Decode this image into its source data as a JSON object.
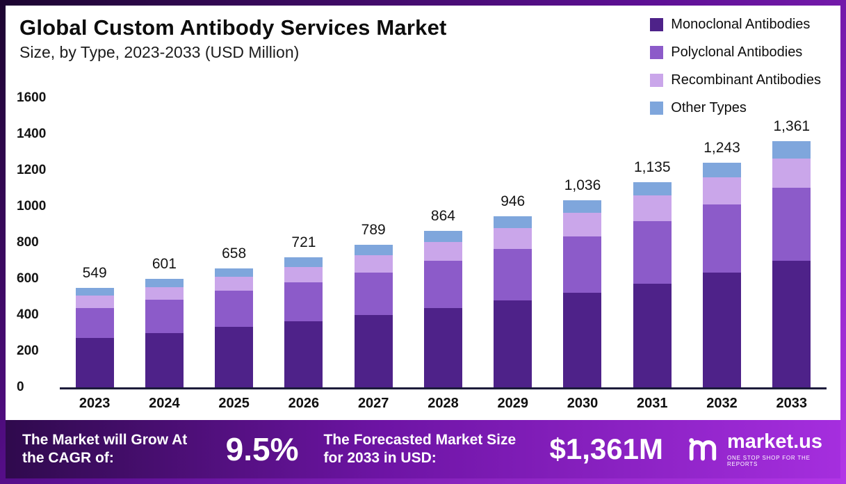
{
  "header": {
    "title": "Global Custom Antibody Services Market",
    "subtitle": "Size, by Type, 2023-2033 (USD Million)"
  },
  "chart_data": {
    "type": "bar",
    "stacked": true,
    "title": "Global Custom Antibody Services Market Size, by Type, 2023-2033 (USD Million)",
    "categories": [
      "2023",
      "2024",
      "2025",
      "2026",
      "2027",
      "2028",
      "2029",
      "2030",
      "2031",
      "2032",
      "2033"
    ],
    "series": [
      {
        "name": "Monoclonal Antibodies",
        "color": "#4e2289",
        "values": [
          275,
          300,
          335,
          365,
          400,
          440,
          480,
          525,
          575,
          635,
          700
        ]
      },
      {
        "name": "Polyclonal Antibodies",
        "color": "#8c5bc9",
        "values": [
          165,
          185,
          200,
          215,
          235,
          260,
          285,
          310,
          345,
          375,
          405
        ]
      },
      {
        "name": "Recombinant Antibodies",
        "color": "#caa6ea",
        "values": [
          66,
          70,
          75,
          85,
          95,
          105,
          115,
          130,
          140,
          150,
          160
        ]
      },
      {
        "name": "Other Types",
        "color": "#7fa6dc",
        "values": [
          43,
          46,
          48,
          56,
          59,
          59,
          66,
          71,
          75,
          83,
          96
        ]
      }
    ],
    "totals": [
      549,
      601,
      658,
      721,
      789,
      864,
      946,
      1036,
      1135,
      1243,
      1361
    ],
    "total_labels": [
      "549",
      "601",
      "658",
      "721",
      "789",
      "864",
      "946",
      "1,036",
      "1,135",
      "1,243",
      "1,361"
    ],
    "y_ticks": [
      "1600",
      "1400",
      "1200",
      "1000",
      "800",
      "600",
      "400",
      "200",
      "0"
    ],
    "ylim": [
      0,
      1600
    ],
    "grid": false,
    "legend_position": "top-right"
  },
  "banner": {
    "cagr_label": "The Market will Grow At the CAGR of:",
    "cagr_value": "9.5%",
    "forecast_label": "The Forecasted Market Size for 2033 in USD:",
    "forecast_value": "$1,361M",
    "brand": "market.us",
    "brand_tagline": "One Stop Shop For The Reports"
  }
}
